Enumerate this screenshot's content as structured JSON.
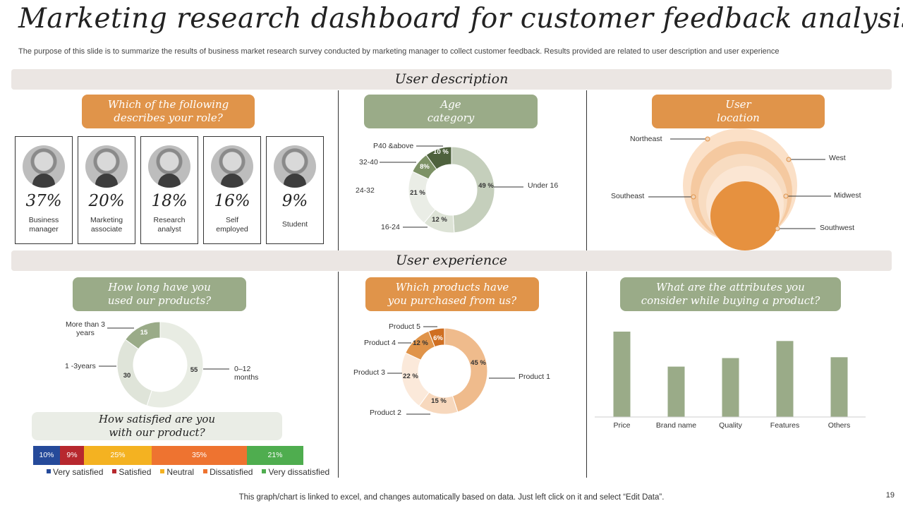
{
  "title": "Marketing research dashboard for customer feedback analysis",
  "subtitle": "The purpose of this slide is to summarize the results of business market research survey conducted by marketing manager to collect customer feedback. Results provided are related to user description and user experience",
  "sections": {
    "user_description": "User description",
    "user_experience": "User experience"
  },
  "role": {
    "question_line1": "Which of the following",
    "question_line2": "describes your role?",
    "cards": [
      {
        "pct": "37%",
        "line1": "Business",
        "line2": "manager"
      },
      {
        "pct": "20%",
        "line1": "Marketing",
        "line2": "associate"
      },
      {
        "pct": "18%",
        "line1": "Research",
        "line2": "analyst"
      },
      {
        "pct": "16%",
        "line1": "Self",
        "line2": "employed"
      },
      {
        "pct": "9%",
        "line1": "Student",
        "line2": ""
      }
    ]
  },
  "age": {
    "header_line1": "Age",
    "header_line2": "category",
    "labels": {
      "p40": "P40 &above",
      "a3240": "32-40",
      "a2432": "24-32",
      "a1624": "16-24",
      "under16": "Under 16"
    },
    "values": {
      "p40": "10 %",
      "a3240": "8%",
      "a2432": "21 %",
      "a1624": "12 %",
      "under16": "49 %"
    }
  },
  "location": {
    "header_line1": "User",
    "header_line2": "location",
    "labels": {
      "northeast": "Northeast",
      "west": "West",
      "southeast": "Southeast",
      "midwest": "Midwest",
      "southwest": "Southwest"
    }
  },
  "usage": {
    "question_line1": "How long have you",
    "question_line2": "used our products?",
    "labels": {
      "more3": "More than 3 years",
      "one3": "1 -3years",
      "zero12": "0–12 months"
    },
    "values": {
      "more3": "15",
      "one3": "30",
      "zero12": "55"
    }
  },
  "products": {
    "question_line1": "Which products have",
    "question_line2": "you purchased from us?",
    "labels": {
      "p1": "Product 1",
      "p2": "Product 2",
      "p3": "Product 3",
      "p4": "Product 4",
      "p5": "Product 5"
    },
    "values": {
      "p1": "45 %",
      "p2": "15 %",
      "p3": "22 %",
      "p4": "12 %",
      "p5": "6%"
    }
  },
  "satisfaction": {
    "question_line1": "How satisfied are you",
    "question_line2": "with our product?",
    "segments": [
      {
        "label": "10%",
        "name": "Very satisfied",
        "color": "#254a9a"
      },
      {
        "label": "9%",
        "name": "Satisfied",
        "color": "#b7282e"
      },
      {
        "label": "25%",
        "name": "Neutral",
        "color": "#f4b221"
      },
      {
        "label": "35%",
        "name": "Dissatisfied",
        "color": "#ee7330"
      },
      {
        "label": "21%",
        "name": "Very dissatisfied",
        "color": "#4fad4f"
      }
    ]
  },
  "attributes": {
    "question_line1": "What are the attributes you",
    "question_line2": "consider while buying a product?"
  },
  "chart_data": [
    {
      "type": "pie",
      "categories": [
        "P40 &above",
        "32-40",
        "24-32",
        "16-24",
        "Under 16"
      ],
      "values": [
        10,
        8,
        21,
        12,
        49
      ]
    },
    {
      "type": "pie",
      "categories": [
        "More than 3 years",
        "1 -3years",
        "0–12 months"
      ],
      "values": [
        15,
        30,
        55
      ]
    },
    {
      "type": "pie",
      "categories": [
        "Product 1",
        "Product 2",
        "Product 3",
        "Product 4",
        "Product 5"
      ],
      "values": [
        45,
        15,
        22,
        12,
        6
      ]
    },
    {
      "type": "bar",
      "categories": [
        "Price",
        "Brand name",
        "Quality",
        "Features",
        "Others"
      ],
      "values": [
        100,
        59,
        69,
        89,
        70
      ],
      "color": "#9aab88"
    }
  ],
  "footer": "This graph/chart is linked to excel, and changes automatically based on data. Just left click on it and select “Edit Data”.",
  "page_number": "19"
}
